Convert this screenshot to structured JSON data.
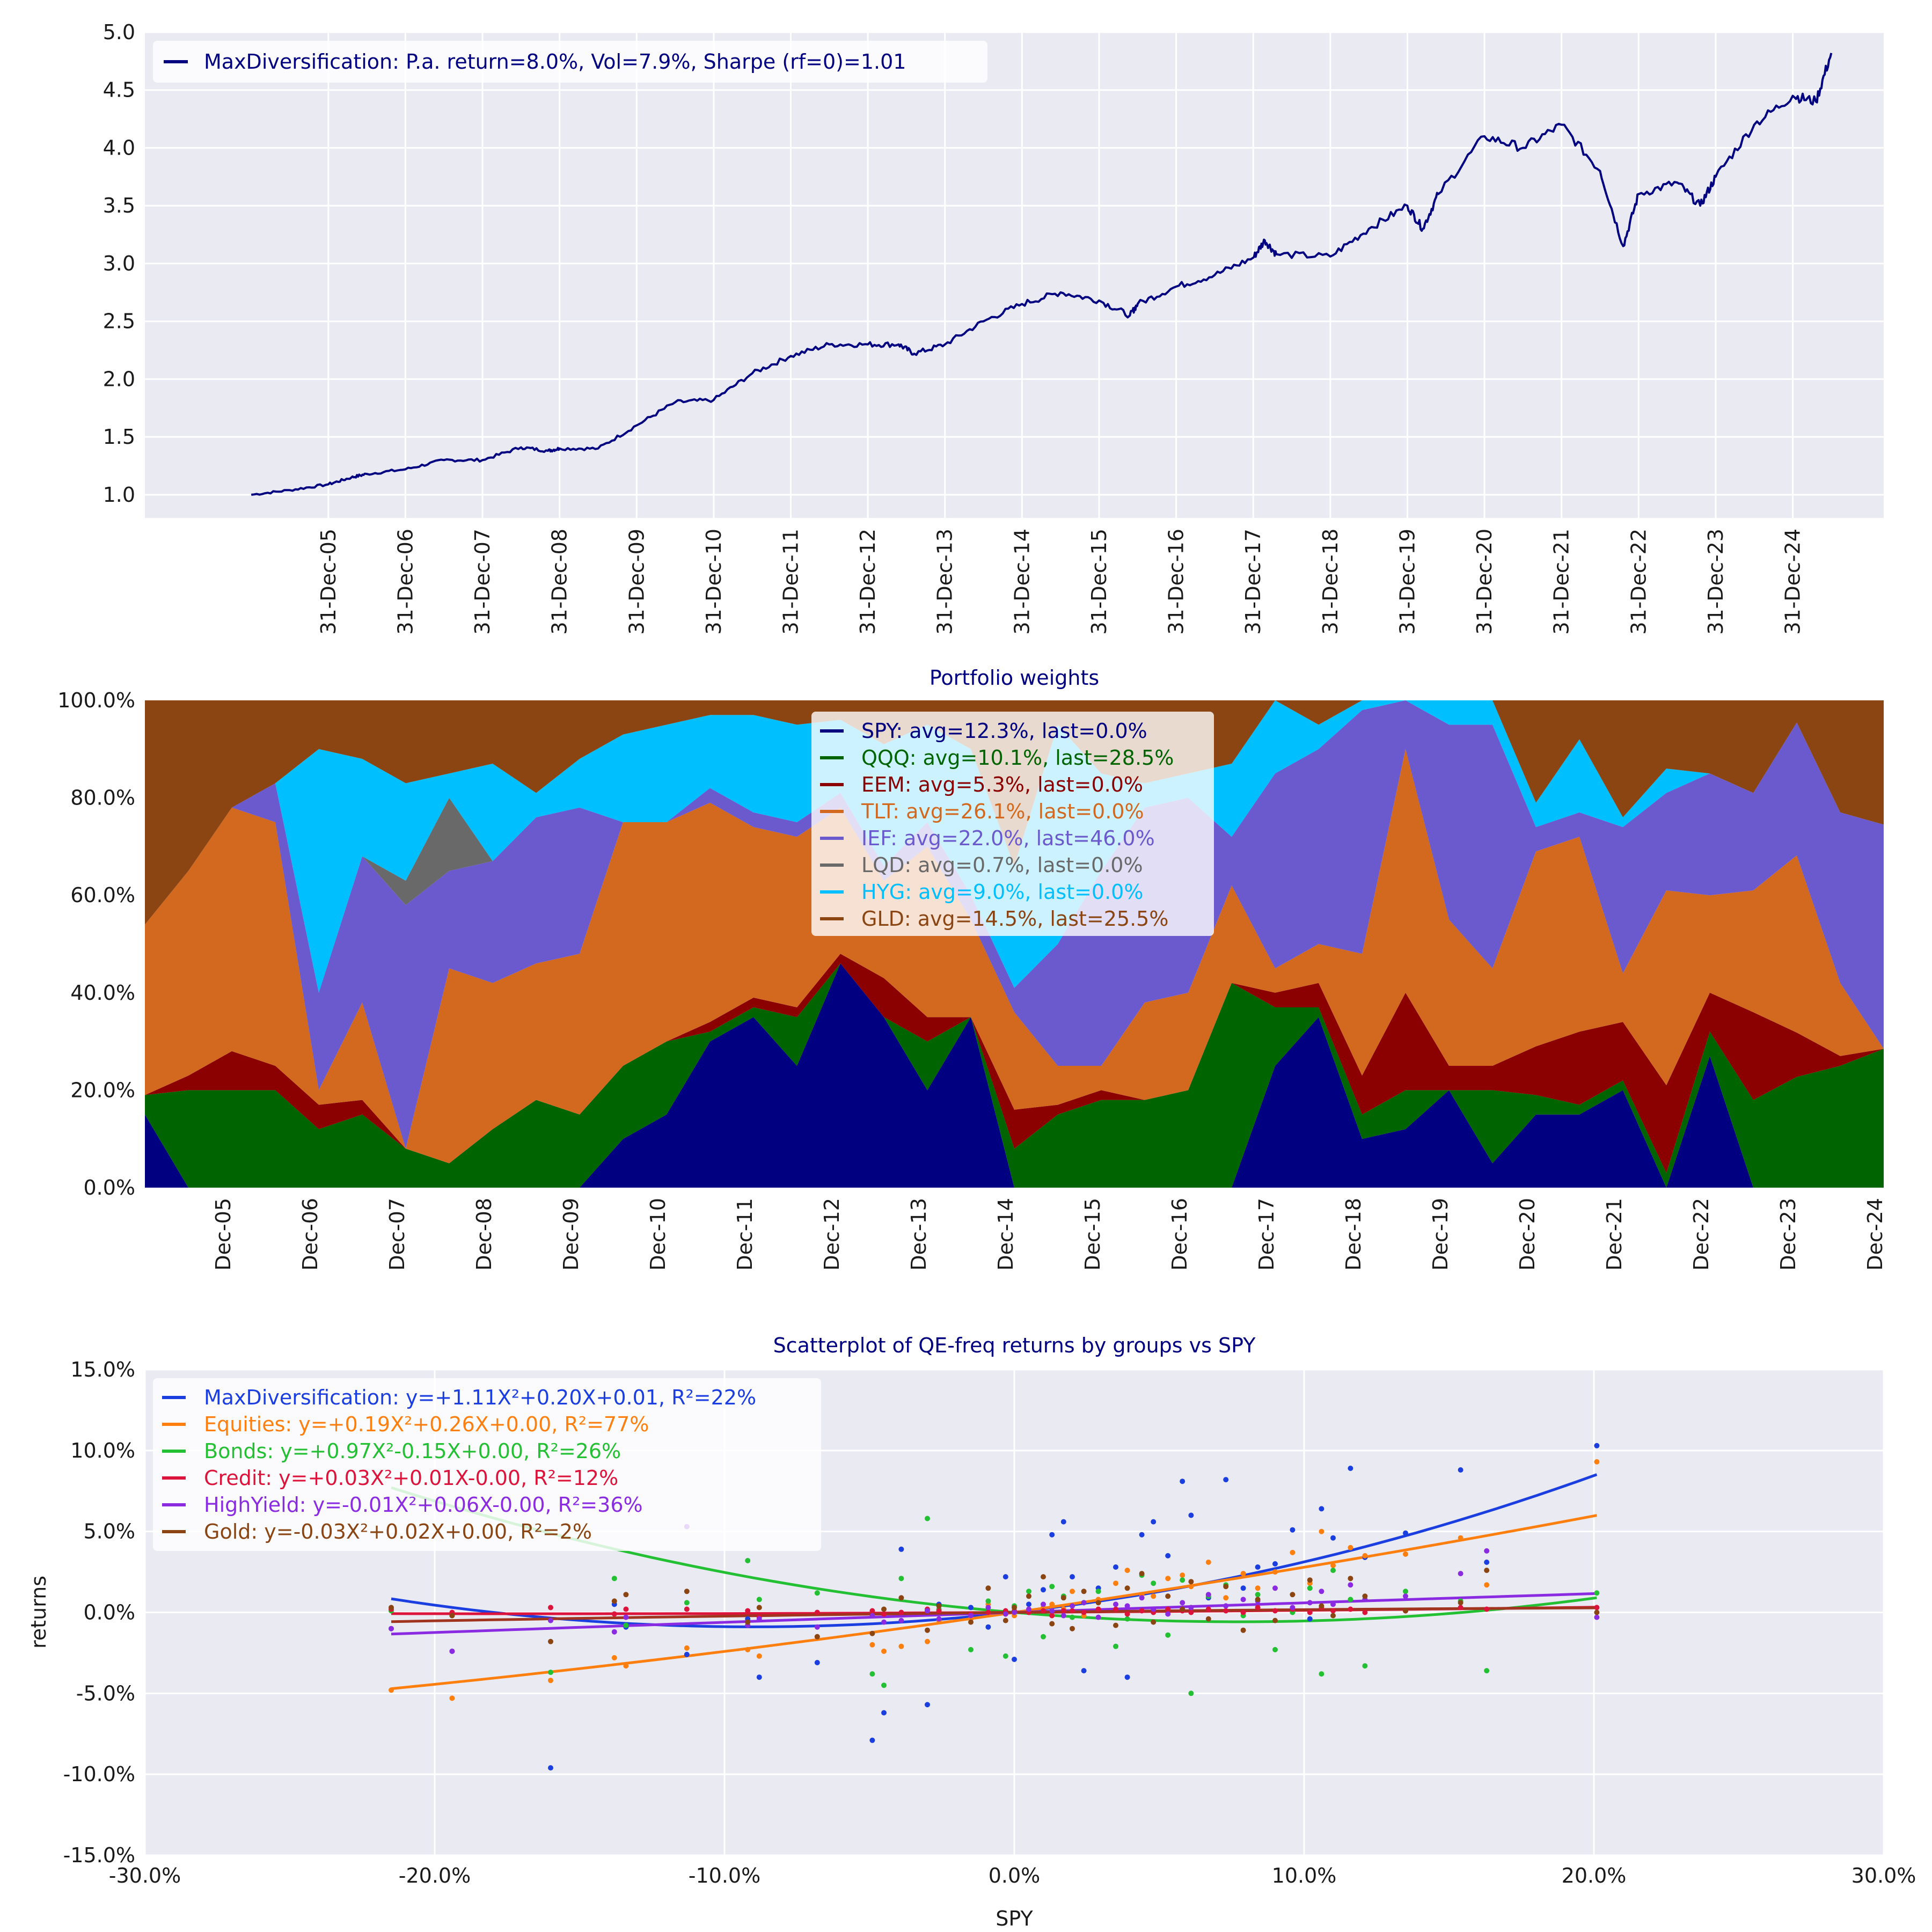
{
  "chart_data": [
    {
      "type": "line",
      "title": "",
      "xlabel": "",
      "ylabel": "",
      "ylim": [
        0.8,
        5.0
      ],
      "yticks": [
        "1.0",
        "1.5",
        "2.0",
        "2.5",
        "3.0",
        "3.5",
        "4.0",
        "4.5",
        "5.0"
      ],
      "xticks": [
        "31-Dec-05",
        "31-Dec-06",
        "31-Dec-07",
        "31-Dec-08",
        "31-Dec-09",
        "31-Dec-10",
        "31-Dec-11",
        "31-Dec-12",
        "31-Dec-13",
        "31-Dec-14",
        "31-Dec-15",
        "31-Dec-16",
        "31-Dec-17",
        "31-Dec-18",
        "31-Dec-19",
        "31-Dec-20",
        "31-Dec-21",
        "31-Dec-22",
        "31-Dec-23",
        "31-Dec-24"
      ],
      "grid": true,
      "legend_position": "top-left",
      "series": [
        {
          "name": "MaxDiversification: P.a. return=8.0%, Vol=7.9%, Sharpe (rf=0)=1.01",
          "color": "#000080",
          "x": [
            2005.0,
            2005.5,
            2006.0,
            2006.3,
            2006.5,
            2007.0,
            2007.5,
            2008.0,
            2008.5,
            2008.85,
            2009.0,
            2009.5,
            2010.0,
            2010.5,
            2011.0,
            2011.5,
            2012.0,
            2012.5,
            2013.0,
            2013.4,
            2013.6,
            2014.0,
            2014.5,
            2015.0,
            2015.5,
            2016.0,
            2016.4,
            2016.5,
            2017.0,
            2017.5,
            2018.0,
            2018.15,
            2018.3,
            2019.0,
            2019.5,
            2020.0,
            2020.2,
            2020.4,
            2021.0,
            2021.5,
            2022.0,
            2022.5,
            2022.8,
            2023.0,
            2023.5,
            2023.8,
            2024.0,
            2024.5,
            2025.0,
            2025.3,
            2025.5
          ],
          "y": [
            1.0,
            1.04,
            1.09,
            1.15,
            1.18,
            1.22,
            1.3,
            1.3,
            1.41,
            1.38,
            1.4,
            1.4,
            1.6,
            1.8,
            1.82,
            2.05,
            2.2,
            2.3,
            2.3,
            2.3,
            2.22,
            2.3,
            2.5,
            2.65,
            2.75,
            2.68,
            2.55,
            2.65,
            2.8,
            2.9,
            3.05,
            3.2,
            3.08,
            3.06,
            3.3,
            3.5,
            3.3,
            3.6,
            4.1,
            4.0,
            4.2,
            3.8,
            3.15,
            3.6,
            3.7,
            3.5,
            3.75,
            4.2,
            4.45,
            4.4,
            4.82
          ]
        }
      ]
    },
    {
      "type": "area",
      "title": "Portfolio weights",
      "xlabel": "",
      "ylabel": "",
      "ylim": [
        0,
        100
      ],
      "yticks": [
        "0.0%",
        "20.0%",
        "40.0%",
        "60.0%",
        "80.0%",
        "100.0%"
      ],
      "xticks": [
        "Dec-05",
        "Dec-06",
        "Dec-07",
        "Dec-08",
        "Dec-09",
        "Dec-10",
        "Dec-11",
        "Dec-12",
        "Dec-13",
        "Dec-14",
        "Dec-15",
        "Dec-16",
        "Dec-17",
        "Dec-18",
        "Dec-19",
        "Dec-20",
        "Dec-21",
        "Dec-22",
        "Dec-23",
        "Dec-24"
      ],
      "stacked": true,
      "legend_position": "top-center",
      "x": [
        2005.0,
        2005.5,
        2006.0,
        2006.5,
        2007.0,
        2007.5,
        2008.0,
        2008.5,
        2009.0,
        2009.5,
        2010.0,
        2010.5,
        2011.0,
        2011.5,
        2012.0,
        2012.5,
        2013.0,
        2013.5,
        2014.0,
        2014.5,
        2015.0,
        2015.5,
        2016.0,
        2016.5,
        2017.0,
        2017.5,
        2018.0,
        2018.5,
        2019.0,
        2019.5,
        2020.0,
        2020.5,
        2021.0,
        2021.5,
        2022.0,
        2022.5,
        2023.0,
        2023.5,
        2024.0,
        2024.5,
        2025.0
      ],
      "series": [
        {
          "name": "SPY: avg=12.3%, last=0.0%",
          "color": "#000080",
          "values": [
            15,
            0,
            0,
            0,
            0,
            0,
            0,
            0,
            0,
            0,
            0,
            10,
            15,
            30,
            35,
            25,
            46,
            35,
            20,
            35,
            0,
            0,
            0,
            0,
            0,
            0,
            25,
            35,
            10,
            12,
            20,
            5,
            15,
            15,
            20,
            0,
            27,
            0,
            0,
            0,
            0
          ]
        },
        {
          "name": "QQQ: avg=10.1%, last=28.5%",
          "color": "#006400",
          "values": [
            4,
            20,
            20,
            20,
            12,
            15,
            8,
            5,
            12,
            18,
            15,
            15,
            15,
            2,
            2,
            10,
            0,
            0,
            10,
            0,
            8,
            15,
            18,
            18,
            20,
            42,
            12,
            2,
            5,
            8,
            0,
            15,
            4,
            2,
            2,
            3,
            5,
            18,
            25,
            25,
            28.5
          ]
        },
        {
          "name": "EEM: avg=5.3%, last=0.0%",
          "color": "#8b0000",
          "values": [
            0,
            3,
            8,
            5,
            5,
            3,
            0,
            0,
            0,
            0,
            0,
            0,
            0,
            2,
            2,
            2,
            2,
            8,
            5,
            0,
            8,
            2,
            2,
            0,
            0,
            0,
            3,
            5,
            8,
            20,
            5,
            5,
            10,
            15,
            12,
            18,
            8,
            18,
            10,
            2,
            0
          ]
        },
        {
          "name": "TLT: avg=26.1%, last=0.0%",
          "color": "#d2691e",
          "values": [
            35,
            42,
            50,
            50,
            3,
            20,
            0,
            40,
            30,
            28,
            33,
            50,
            45,
            45,
            35,
            35,
            30,
            20,
            35,
            20,
            20,
            8,
            5,
            20,
            20,
            20,
            5,
            8,
            25,
            50,
            30,
            20,
            40,
            40,
            10,
            40,
            20,
            25,
            40,
            15,
            0
          ]
        },
        {
          "name": "IEF: avg=22.0%, last=46.0%",
          "color": "#6a5acd",
          "values": [
            0,
            0,
            0,
            8,
            20,
            30,
            50,
            20,
            25,
            30,
            30,
            0,
            0,
            3,
            3,
            3,
            3,
            3,
            5,
            5,
            5,
            25,
            40,
            40,
            40,
            10,
            40,
            40,
            50,
            10,
            40,
            50,
            5,
            5,
            30,
            20,
            25,
            20,
            30,
            35,
            46
          ]
        },
        {
          "name": "LQD: avg=0.7%, last=0.0%",
          "color": "#696969",
          "values": [
            0,
            0,
            0,
            0,
            0,
            0,
            5,
            15,
            0,
            0,
            0,
            0,
            0,
            0,
            0,
            0,
            0,
            0,
            0,
            0,
            0,
            0,
            0,
            0,
            0,
            0,
            0,
            0,
            0,
            0,
            0,
            0,
            0,
            0,
            0,
            0,
            0,
            0,
            0,
            0,
            0
          ]
        },
        {
          "name": "HYG: avg=9.0%, last=0.0%",
          "color": "#00bfff",
          "values": [
            0,
            0,
            0,
            0,
            50,
            20,
            20,
            5,
            20,
            5,
            10,
            18,
            20,
            15,
            20,
            20,
            15,
            25,
            20,
            30,
            25,
            45,
            20,
            5,
            5,
            15,
            15,
            5,
            2,
            0,
            5,
            5,
            5,
            15,
            2,
            5,
            0,
            0,
            0,
            0,
            0
          ]
        },
        {
          "name": "GLD: avg=14.5%, last=25.5%",
          "color": "#8b4513",
          "values": [
            46,
            35,
            22,
            17,
            10,
            12,
            17,
            15,
            13,
            19,
            12,
            7,
            5,
            3,
            3,
            5,
            4,
            9,
            5,
            10,
            34,
            5,
            15,
            17,
            15,
            13,
            0,
            5,
            0,
            0,
            0,
            0,
            21,
            8,
            24,
            14,
            15,
            19,
            5,
            23,
            25.5
          ]
        }
      ]
    },
    {
      "type": "scatter",
      "title": "Scatterplot of QE-freq returns by groups vs SPY",
      "xlabel": "SPY",
      "ylabel": "returns",
      "xlim": [
        -30,
        30
      ],
      "ylim": [
        -15,
        15
      ],
      "xticks": [
        "-30.0%",
        "-20.0%",
        "-10.0%",
        "0.0%",
        "10.0%",
        "20.0%",
        "30.0%"
      ],
      "yticks": [
        "-15.0%",
        "-10.0%",
        "-5.0%",
        "0.0%",
        "5.0%",
        "10.0%",
        "15.0%"
      ],
      "legend_position": "top-left",
      "x": [
        -21.5,
        -19.4,
        -16.0,
        -13.8,
        -13.4,
        -11.3,
        -9.2,
        -8.8,
        -6.8,
        -4.9,
        -4.5,
        -3.9,
        -3.0,
        -2.6,
        -1.5,
        -0.9,
        -0.3,
        0.0,
        0.5,
        1.0,
        1.3,
        1.7,
        2.0,
        2.4,
        2.9,
        3.5,
        3.9,
        4.4,
        4.8,
        5.3,
        5.8,
        6.1,
        6.7,
        7.3,
        7.9,
        8.4,
        9.0,
        9.6,
        10.2,
        10.6,
        11.0,
        11.6,
        12.1,
        13.5,
        15.4,
        16.3,
        20.1
      ],
      "series": [
        {
          "name": "MaxDiversification: y=+1.11X²+0.20X+0.01, R²=22%",
          "color": "#1a3ee0",
          "values": [
            -1.0,
            -2.4,
            -9.6,
            0.5,
            -0.9,
            -2.6,
            -0.4,
            -4.0,
            -3.1,
            -7.9,
            -6.2,
            3.9,
            -5.7,
            0.5,
            0.3,
            -0.9,
            2.2,
            -2.9,
            0.5,
            1.4,
            4.8,
            5.6,
            2.2,
            -3.6,
            1.5,
            2.8,
            -4.0,
            4.8,
            5.6,
            3.5,
            8.1,
            6.0,
            0.9,
            8.2,
            1.5,
            2.8,
            3.0,
            5.1,
            -0.4,
            6.4,
            4.6,
            8.9,
            3.4,
            4.9,
            8.8,
            3.1,
            10.3
          ]
        },
        {
          "name": "Equities: y=+0.19X²+0.26X+0.00, R²=77%",
          "color": "#ff7f0e",
          "values": [
            -4.8,
            -5.3,
            -4.2,
            -2.8,
            -3.3,
            -2.2,
            -2.3,
            -2.7,
            -1.5,
            -2.0,
            -2.4,
            -2.1,
            -1.8,
            -0.5,
            -0.4,
            0.5,
            -0.1,
            -0.2,
            0.2,
            0.3,
            0.5,
            0.2,
            1.3,
            -0.2,
            0.8,
            1.8,
            2.6,
            1.1,
            1.0,
            2.1,
            2.3,
            1.6,
            3.1,
            0.9,
            2.4,
            1.5,
            2.5,
            3.7,
            1.8,
            5.0,
            2.9,
            4.0,
            3.5,
            3.6,
            4.6,
            1.7,
            9.3
          ]
        },
        {
          "name": "Bonds: y=+0.97X²-0.15X+0.00, R²=26%",
          "color": "#22c032",
          "values": [
            0.1,
            -0.2,
            -3.7,
            2.1,
            -0.8,
            0.6,
            3.2,
            0.8,
            1.2,
            -3.8,
            -4.5,
            2.1,
            5.8,
            0.2,
            -2.3,
            0.7,
            -2.7,
            0.4,
            1.3,
            -1.5,
            1.6,
            1.0,
            -0.3,
            0.6,
            1.3,
            -2.1,
            -0.4,
            2.3,
            1.8,
            -1.4,
            2.0,
            -5.0,
            1.0,
            1.7,
            -0.2,
            1.1,
            -2.3,
            0.0,
            1.5,
            -3.8,
            2.6,
            0.8,
            -3.3,
            1.3,
            0.7,
            -3.6,
            1.2
          ]
        },
        {
          "name": "Credit: y=+0.03X²+0.01X-0.00, R²=12%",
          "color": "#dc143c",
          "values": [
            0.2,
            0.0,
            0.3,
            -0.1,
            0.2,
            0.2,
            0.1,
            -0.3,
            0.0,
            0.1,
            -0.1,
            0.0,
            0.2,
            0.1,
            -0.1,
            0.0,
            0.1,
            0.1,
            0.0,
            0.1,
            -0.2,
            0.1,
            0.1,
            0.0,
            0.2,
            0.2,
            -0.1,
            0.1,
            0.0,
            0.2,
            0.1,
            0.0,
            0.2,
            0.1,
            0.0,
            0.3,
            0.1,
            0.2,
            0.0,
            0.3,
            0.1,
            0.2,
            0.0,
            0.1,
            0.3,
            0.2,
            0.3
          ]
        },
        {
          "name": "HighYield: y=-0.01X²+0.06X-0.00, R²=36%",
          "color": "#8a2be2",
          "values": [
            -1.0,
            -2.4,
            -0.5,
            -1.2,
            -0.3,
            5.3,
            -0.8,
            -0.4,
            -0.9,
            -0.2,
            -0.6,
            -0.5,
            0.1,
            -0.4,
            -0.2,
            0.3,
            -0.1,
            0.0,
            0.2,
            0.5,
            0.1,
            -0.2,
            0.4,
            0.6,
            -0.3,
            0.5,
            0.4,
            0.9,
            0.2,
            -0.1,
            0.6,
            0.3,
            1.1,
            0.4,
            0.8,
            0.7,
            1.5,
            0.3,
            0.6,
            1.3,
            0.5,
            1.7,
            0.8,
            1.0,
            2.4,
            3.8,
            -0.3
          ]
        },
        {
          "name": "Gold: y=-0.03X²+0.02X+0.00, R²=2%",
          "color": "#8b4513",
          "values": [
            0.3,
            -0.2,
            -1.8,
            0.7,
            1.1,
            1.3,
            -0.6,
            0.3,
            -1.5,
            -1.3,
            0.2,
            0.9,
            -1.1,
            0.4,
            -0.6,
            1.5,
            -0.5,
            0.3,
            1.0,
            2.2,
            -0.7,
            0.9,
            -1.0,
            1.3,
            0.6,
            -0.8,
            1.5,
            2.4,
            -0.6,
            1.0,
            0.2,
            1.9,
            -0.4,
            1.6,
            -1.1,
            0.8,
            -0.5,
            1.1,
            2.0,
            0.4,
            -0.2,
            2.1,
            1.0,
            0.1,
            0.6,
            2.6,
            0.0
          ]
        }
      ],
      "fits": [
        {
          "color": "#1a3ee0",
          "a": 1.11,
          "b": 0.2,
          "c": 0.01
        },
        {
          "color": "#ff7f0e",
          "a": 0.19,
          "b": 0.26,
          "c": 0.0
        },
        {
          "color": "#22c032",
          "a": 0.97,
          "b": -0.15,
          "c": 0.0
        },
        {
          "color": "#dc143c",
          "a": 0.03,
          "b": 0.01,
          "c": 0.0
        },
        {
          "color": "#8a2be2",
          "a": -0.01,
          "b": 0.06,
          "c": 0.0
        },
        {
          "color": "#a0341e",
          "a": -0.03,
          "b": 0.02,
          "c": 0.0
        }
      ]
    }
  ]
}
